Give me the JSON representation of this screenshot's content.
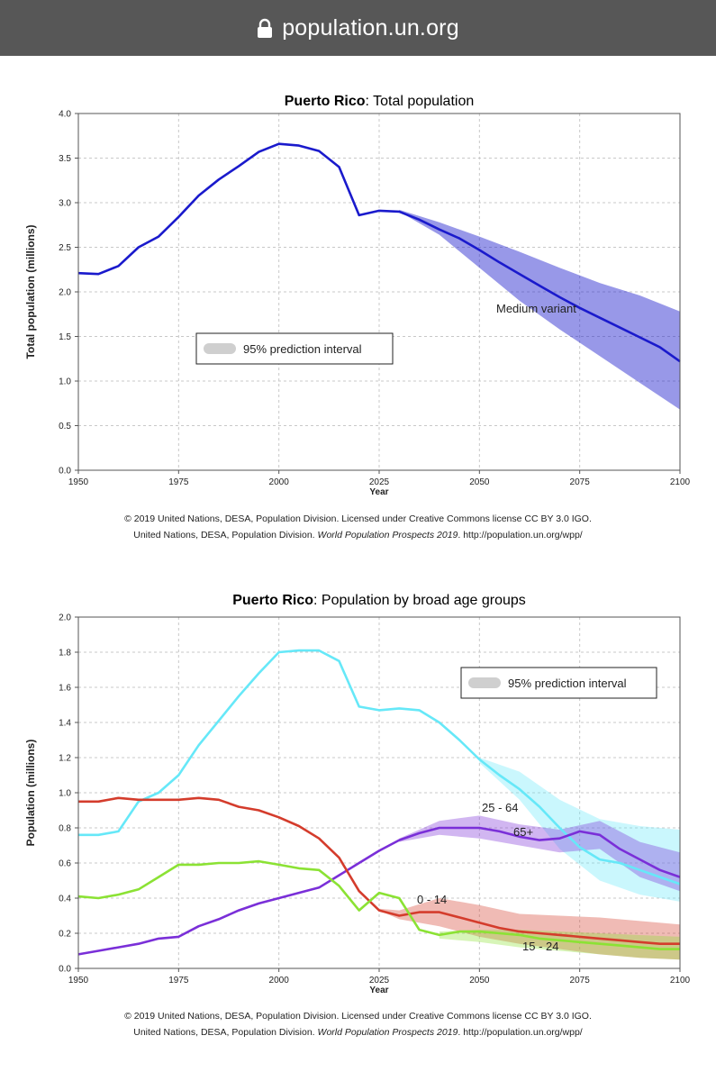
{
  "browser": {
    "url": "population.un.org",
    "lock_icon": "lock-icon"
  },
  "charts_meta": {
    "colors": {
      "total_line": "#1a1acc",
      "total_band": "#c0c0ff",
      "age_0_14": "#d43c2c",
      "age_15_24": "#8be234",
      "age_25_64": "#66e8f8",
      "age_65": "#7a2fd8"
    }
  },
  "chart_data": [
    {
      "type": "line",
      "title_bold": "Puerto Rico",
      "title_rest": ": Total population",
      "xlabel": "Year",
      "ylabel": "Total population (millions)",
      "xlim": [
        1950,
        2100
      ],
      "ylim": [
        0,
        4.0
      ],
      "x_ticks": [
        "1950",
        "1975",
        "2000",
        "2025",
        "2050",
        "2075",
        "2100"
      ],
      "y_ticks": [
        "0.0",
        "0.5",
        "1.0",
        "1.5",
        "2.0",
        "2.5",
        "3.0",
        "3.5",
        "4.0"
      ],
      "legend": "95% prediction interval",
      "annotation": "Medium variant",
      "series": [
        {
          "key": "total",
          "color": "#1a1acc",
          "x": [
            1950,
            1955,
            1960,
            1965,
            1970,
            1975,
            1980,
            1985,
            1990,
            1995,
            2000,
            2005,
            2010,
            2015,
            2020,
            2025,
            2030,
            2035,
            2040,
            2045,
            2050,
            2055,
            2060,
            2065,
            2070,
            2075,
            2080,
            2085,
            2090,
            2095,
            2100
          ],
          "values": [
            2.21,
            2.2,
            2.29,
            2.5,
            2.62,
            2.84,
            3.08,
            3.26,
            3.41,
            3.57,
            3.66,
            3.64,
            3.58,
            3.4,
            2.86,
            2.91,
            2.9,
            2.81,
            2.7,
            2.6,
            2.47,
            2.33,
            2.2,
            2.07,
            1.94,
            1.82,
            1.71,
            1.6,
            1.49,
            1.38,
            1.22
          ],
          "band_x": [
            2030,
            2040,
            2050,
            2060,
            2070,
            2080,
            2090,
            2100
          ],
          "band_low": [
            2.9,
            2.64,
            2.27,
            1.9,
            1.58,
            1.28,
            0.98,
            0.68
          ],
          "band_high": [
            2.92,
            2.78,
            2.62,
            2.45,
            2.27,
            2.1,
            1.96,
            1.78
          ]
        }
      ]
    },
    {
      "type": "line",
      "title_bold": "Puerto Rico",
      "title_rest": ": Population by broad age groups",
      "xlabel": "Year",
      "ylabel": "Population (millions)",
      "xlim": [
        1950,
        2100
      ],
      "ylim": [
        0,
        2.0
      ],
      "x_ticks": [
        "1950",
        "1975",
        "2000",
        "2025",
        "2050",
        "2075",
        "2100"
      ],
      "y_ticks": [
        "0.0",
        "0.2",
        "0.4",
        "0.6",
        "0.8",
        "1.0",
        "1.2",
        "1.4",
        "1.6",
        "1.8",
        "2.0"
      ],
      "legend": "95% prediction interval",
      "series": [
        {
          "key": "age_25_64",
          "name": "25 - 64",
          "color": "#66e8f8",
          "x": [
            1950,
            1955,
            1960,
            1965,
            1970,
            1975,
            1980,
            1985,
            1990,
            1995,
            2000,
            2005,
            2010,
            2015,
            2020,
            2025,
            2030,
            2035,
            2040,
            2045,
            2050,
            2055,
            2060,
            2065,
            2070,
            2075,
            2080,
            2085,
            2090,
            2095,
            2100
          ],
          "values": [
            0.76,
            0.76,
            0.78,
            0.95,
            1.0,
            1.1,
            1.27,
            1.41,
            1.55,
            1.68,
            1.8,
            1.81,
            1.81,
            1.75,
            1.49,
            1.47,
            1.48,
            1.47,
            1.4,
            1.3,
            1.19,
            1.1,
            1.02,
            0.92,
            0.8,
            0.69,
            0.62,
            0.6,
            0.56,
            0.52,
            0.48
          ],
          "band_x": [
            2050,
            2060,
            2070,
            2080,
            2090,
            2100
          ],
          "band_low": [
            1.17,
            0.96,
            0.68,
            0.5,
            0.42,
            0.38
          ],
          "band_high": [
            1.2,
            1.12,
            0.96,
            0.85,
            0.81,
            0.79
          ]
        },
        {
          "key": "age_65",
          "name": "65+",
          "color": "#7a2fd8",
          "x": [
            1950,
            1955,
            1960,
            1965,
            1970,
            1975,
            1980,
            1985,
            1990,
            1995,
            2000,
            2005,
            2010,
            2015,
            2020,
            2025,
            2030,
            2035,
            2040,
            2045,
            2050,
            2055,
            2060,
            2065,
            2070,
            2075,
            2080,
            2085,
            2090,
            2095,
            2100
          ],
          "values": [
            0.08,
            0.1,
            0.12,
            0.14,
            0.17,
            0.18,
            0.24,
            0.28,
            0.33,
            0.37,
            0.4,
            0.43,
            0.46,
            0.53,
            0.6,
            0.67,
            0.73,
            0.77,
            0.8,
            0.8,
            0.8,
            0.78,
            0.75,
            0.73,
            0.74,
            0.78,
            0.76,
            0.68,
            0.62,
            0.56,
            0.52
          ],
          "band_x": [
            2030,
            2040,
            2050,
            2060,
            2070,
            2080,
            2090,
            2100
          ],
          "band_low": [
            0.72,
            0.76,
            0.74,
            0.7,
            0.66,
            0.68,
            0.52,
            0.44
          ],
          "band_high": [
            0.74,
            0.84,
            0.87,
            0.82,
            0.79,
            0.84,
            0.72,
            0.66
          ]
        },
        {
          "key": "age_0_14",
          "name": "0 - 14",
          "color": "#d43c2c",
          "x": [
            1950,
            1955,
            1960,
            1965,
            1970,
            1975,
            1980,
            1985,
            1990,
            1995,
            2000,
            2005,
            2010,
            2015,
            2020,
            2025,
            2030,
            2035,
            2040,
            2045,
            2050,
            2055,
            2060,
            2065,
            2070,
            2075,
            2080,
            2085,
            2090,
            2095,
            2100
          ],
          "values": [
            0.95,
            0.95,
            0.97,
            0.96,
            0.96,
            0.96,
            0.97,
            0.96,
            0.92,
            0.9,
            0.86,
            0.81,
            0.74,
            0.63,
            0.44,
            0.33,
            0.3,
            0.32,
            0.32,
            0.29,
            0.26,
            0.23,
            0.21,
            0.2,
            0.19,
            0.18,
            0.17,
            0.16,
            0.15,
            0.14,
            0.14
          ],
          "band_x": [
            2025,
            2030,
            2040,
            2050,
            2060,
            2070,
            2080,
            2090,
            2100
          ],
          "band_low": [
            0.33,
            0.28,
            0.24,
            0.18,
            0.14,
            0.11,
            0.08,
            0.06,
            0.05
          ],
          "band_high": [
            0.34,
            0.33,
            0.4,
            0.36,
            0.31,
            0.3,
            0.29,
            0.27,
            0.25
          ]
        },
        {
          "key": "age_15_24",
          "name": "15 - 24",
          "color": "#8be234",
          "x": [
            1950,
            1955,
            1960,
            1965,
            1970,
            1975,
            1980,
            1985,
            1990,
            1995,
            2000,
            2005,
            2010,
            2015,
            2020,
            2025,
            2030,
            2035,
            2040,
            2045,
            2050,
            2055,
            2060,
            2065,
            2070,
            2075,
            2080,
            2085,
            2090,
            2095,
            2100
          ],
          "values": [
            0.41,
            0.4,
            0.42,
            0.45,
            0.52,
            0.59,
            0.59,
            0.6,
            0.6,
            0.61,
            0.59,
            0.57,
            0.56,
            0.47,
            0.33,
            0.43,
            0.4,
            0.22,
            0.19,
            0.21,
            0.21,
            0.2,
            0.19,
            0.17,
            0.16,
            0.15,
            0.14,
            0.13,
            0.12,
            0.11,
            0.11
          ],
          "band_x": [
            2040,
            2050,
            2060,
            2070,
            2080,
            2090,
            2100
          ],
          "band_low": [
            0.17,
            0.15,
            0.12,
            0.1,
            0.08,
            0.06,
            0.05
          ],
          "band_high": [
            0.21,
            0.22,
            0.22,
            0.21,
            0.2,
            0.19,
            0.18
          ]
        }
      ]
    }
  ],
  "credits": {
    "line1": "© 2019 United Nations, DESA, Population Division. Licensed under Creative Commons license CC BY 3.0 IGO.",
    "line2_pre": "United Nations, DESA, Population Division.",
    "line2_em": "World Population Prospects 2019",
    "line2_post": ". http://population.un.org/wpp/"
  }
}
